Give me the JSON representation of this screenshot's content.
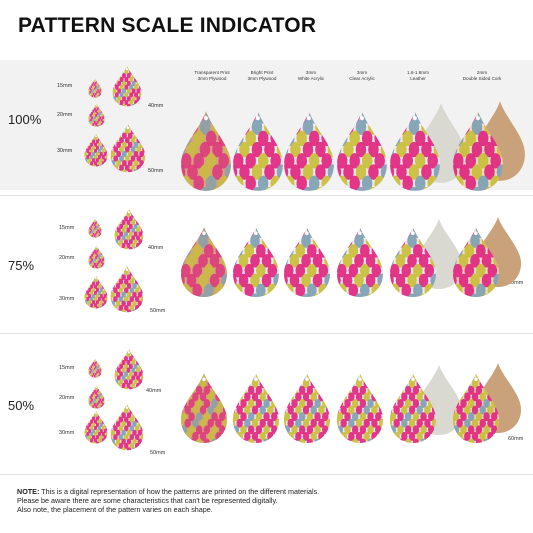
{
  "title": "PATTERN SCALE INDICATOR",
  "sections": [
    {
      "scale": "100%"
    },
    {
      "scale": "75%"
    },
    {
      "scale": "50%"
    }
  ],
  "size_labels": [
    "15mm",
    "20mm",
    "30mm",
    "40mm",
    "50mm",
    "60mm"
  ],
  "materials": [
    {
      "line1": "Transparent Print",
      "line2": "3mm Plywood"
    },
    {
      "line1": "Bright Print",
      "line2": "3mm Plywood"
    },
    {
      "line1": "3mm",
      "line2": "White Acrylic"
    },
    {
      "line1": "3mm",
      "line2": "Clear Acrylic"
    },
    {
      "line1": "1.6-1.8mm",
      "line2": "Leather"
    },
    {
      "line1": "2mm",
      "line2": "Double Sided Cork"
    }
  ],
  "note": {
    "label": "NOTE:",
    "line1": "This is a digital representation of how the patterns are printed on the different materials.",
    "line2": "Please be aware there are some characteristics that can't be represented digitally.",
    "line3": "Also note, the placement of the pattern varies on each shape."
  },
  "colors": {
    "magenta": "#e0267f",
    "yellow": "#c9be3a",
    "blue": "#7d9fb3",
    "wood": "#d3a57a",
    "cork": "#c9a27c",
    "leather_back": "#d9d9d2",
    "band": "#f2f2f2"
  }
}
